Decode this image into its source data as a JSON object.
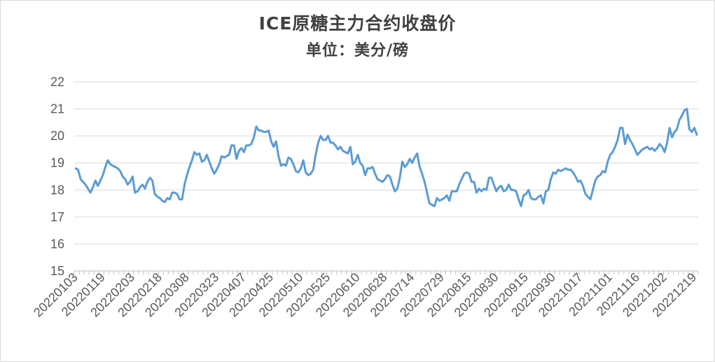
{
  "chart_data": {
    "type": "line",
    "title": "ICE原糖主力合约收盘价",
    "subtitle": "单位：美分/磅",
    "xlabel": "",
    "ylabel": "",
    "ylim": [
      15,
      22
    ],
    "yticks": [
      15,
      16,
      17,
      18,
      19,
      20,
      21,
      22
    ],
    "grid": true,
    "legend": "none",
    "line_color": "#5b9bd5",
    "xtick_labels": [
      "20220103",
      "20220119",
      "20220203",
      "20220218",
      "20220308",
      "20220323",
      "20220407",
      "20220425",
      "20220510",
      "20220525",
      "20220610",
      "20220628",
      "20220714",
      "20220729",
      "20220815",
      "20220830",
      "20220915",
      "20220930",
      "20221017",
      "20221101",
      "20221116",
      "20221202",
      "20221219"
    ],
    "series": [
      {
        "values": [
          18.8,
          18.75,
          18.4,
          18.3,
          18.2,
          18.05,
          17.9,
          18.1,
          18.35,
          18.15,
          18.35,
          18.55,
          18.85,
          19.1,
          18.95,
          18.9,
          18.85,
          18.8,
          18.7,
          18.5,
          18.4,
          18.2,
          18.3,
          18.5,
          17.9,
          17.95,
          18.1,
          18.2,
          18.05,
          18.3,
          18.45,
          18.35,
          17.85,
          17.75,
          17.7,
          17.6,
          17.55,
          17.7,
          17.65,
          17.9,
          17.9,
          17.85,
          17.65,
          17.65,
          18.2,
          18.55,
          18.85,
          19.1,
          19.4,
          19.3,
          19.35,
          19.05,
          19.1,
          19.3,
          19.05,
          18.8,
          18.6,
          18.75,
          18.95,
          19.25,
          19.2,
          19.25,
          19.3,
          19.65,
          19.65,
          19.15,
          19.45,
          19.55,
          19.4,
          19.65,
          19.65,
          19.7,
          19.95,
          20.35,
          20.2,
          20.2,
          20.15,
          20.15,
          20.2,
          19.8,
          19.6,
          19.8,
          19.25,
          18.9,
          18.95,
          18.9,
          19.2,
          19.15,
          18.95,
          18.7,
          18.65,
          18.8,
          19.1,
          18.65,
          18.55,
          18.6,
          18.75,
          19.3,
          19.75,
          20.0,
          19.85,
          19.85,
          20.0,
          19.75,
          19.75,
          19.65,
          19.5,
          19.6,
          19.45,
          19.4,
          19.35,
          19.6,
          18.95,
          19.05,
          19.3,
          19.0,
          18.9,
          18.55,
          18.8,
          18.8,
          18.85,
          18.6,
          18.4,
          18.35,
          18.3,
          18.4,
          18.55,
          18.5,
          18.2,
          17.95,
          18.05,
          18.45,
          19.05,
          18.85,
          18.95,
          19.15,
          19.0,
          19.2,
          19.35,
          18.85,
          18.6,
          18.3,
          17.9,
          17.5,
          17.45,
          17.4,
          17.7,
          17.6,
          17.65,
          17.7,
          17.8,
          17.6,
          17.95,
          17.95,
          17.95,
          18.2,
          18.4,
          18.6,
          18.65,
          18.6,
          18.3,
          18.3,
          17.9,
          18.05,
          17.95,
          18.05,
          18.0,
          18.45,
          18.45,
          18.2,
          17.95,
          18.1,
          18.15,
          17.95,
          18.0,
          18.2,
          18.0,
          18.0,
          17.95,
          17.65,
          17.4,
          17.8,
          17.85,
          18.0,
          17.7,
          17.65,
          17.65,
          17.75,
          17.8,
          17.5,
          17.95,
          18.0,
          18.4,
          18.65,
          18.6,
          18.75,
          18.7,
          18.75,
          18.8,
          18.75,
          18.75,
          18.65,
          18.5,
          18.3,
          18.35,
          18.15,
          17.85,
          17.75,
          17.65,
          18.0,
          18.35,
          18.5,
          18.55,
          18.7,
          18.65,
          19.05,
          19.3,
          19.4,
          19.6,
          19.85,
          20.3,
          20.3,
          19.7,
          20.05,
          19.85,
          19.7,
          19.5,
          19.3,
          19.4,
          19.5,
          19.55,
          19.6,
          19.5,
          19.55,
          19.45,
          19.55,
          19.7,
          19.6,
          19.4,
          19.75,
          20.3,
          19.95,
          20.15,
          20.25,
          20.6,
          20.75,
          20.95,
          21.0,
          20.25,
          20.15,
          20.3,
          20.05
        ]
      }
    ]
  }
}
